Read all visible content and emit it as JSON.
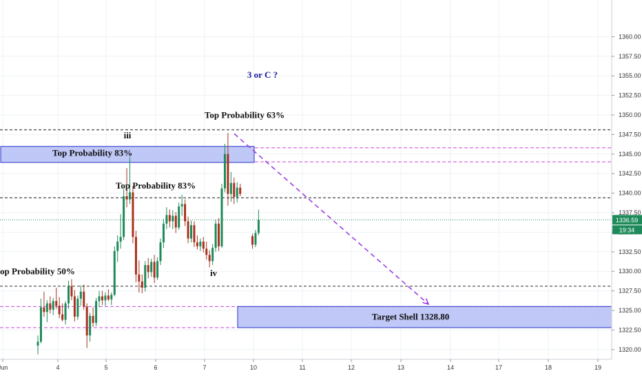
{
  "chart_data": {
    "type": "candlestick",
    "colors": {
      "up": "#1e8a5a",
      "down": "#a8321e",
      "grid": "#eef1f6",
      "black_dashed": "#555555",
      "magenta_dashed": "#c846d8",
      "zone_fill": "#b4bef5",
      "zone_stroke": "#2a32c8",
      "arrow": "#9b3ee0",
      "question_text": "#1a1aa0",
      "price_tag": "#1e8a5a"
    },
    "y_axis": {
      "ticks": [
        "1320.00",
        "1322.50",
        "1325.00",
        "1327.50",
        "1330.00",
        "1332.50",
        "1335.00",
        "1337.50",
        "1340.00",
        "1342.50",
        "1345.00",
        "1347.50",
        "1350.00",
        "1352.50",
        "1355.00",
        "1357.50",
        "1360.00"
      ],
      "range": [
        1319,
        1362
      ]
    },
    "x_axis": {
      "ticks": [
        "Jun",
        "4",
        "5",
        "6",
        "7",
        "10",
        "11",
        "12",
        "13",
        "14",
        "17",
        "18",
        "19"
      ]
    },
    "current_price": "1336.59",
    "countdown": "19:34",
    "levels": {
      "black_dashed": [
        1348.1,
        1339.4,
        1328.1
      ],
      "magenta_dashed": [
        1345.8,
        1344.0,
        1325.5,
        1322.8
      ],
      "current_dotted": 1336.59
    },
    "zones": [
      {
        "label": "Top Probability 83%",
        "from_x": "Jun",
        "to_x": "10",
        "y_low": 1344.1,
        "y_high": 1345.8
      },
      {
        "label": "Target Shell 1328.80",
        "from_x": "7",
        "to_x": "19",
        "y_low": 1322.8,
        "y_high": 1325.5
      }
    ],
    "annotations": [
      {
        "id": "ann-top63",
        "text": "Top Probability 63%",
        "x": "7",
        "y": 1349.6
      },
      {
        "id": "ann-iii",
        "text": "iii",
        "x": "5",
        "y": 1347.0
      },
      {
        "id": "ann-top83-mid",
        "text": "Top Probability 83%",
        "x": "6",
        "y": 1340.6
      },
      {
        "id": "ann-top50",
        "text": "op Probability 50%",
        "x": "Jun",
        "y": 1329.6
      },
      {
        "id": "ann-iv",
        "text": "iv",
        "x": "7",
        "y": 1329.4
      }
    ],
    "question_text": "3 or C ?",
    "projection": {
      "from_x": "7",
      "from_y": 1347.6,
      "to_x": "13",
      "to_y": 1325.8
    },
    "candles": [
      {
        "o": 1320.5,
        "h": 1321.8,
        "l": 1319.4,
        "c": 1321.0
      },
      {
        "o": 1321.0,
        "h": 1326.5,
        "l": 1320.8,
        "c": 1325.4
      },
      {
        "o": 1325.4,
        "h": 1327.4,
        "l": 1324.2,
        "c": 1324.8
      },
      {
        "o": 1324.8,
        "h": 1326.3,
        "l": 1323.5,
        "c": 1325.9
      },
      {
        "o": 1325.9,
        "h": 1326.8,
        "l": 1324.6,
        "c": 1325.1
      },
      {
        "o": 1325.1,
        "h": 1326.6,
        "l": 1324.4,
        "c": 1326.2
      },
      {
        "o": 1326.2,
        "h": 1327.9,
        "l": 1325.2,
        "c": 1325.6
      },
      {
        "o": 1325.6,
        "h": 1326.7,
        "l": 1324.0,
        "c": 1324.5
      },
      {
        "o": 1324.5,
        "h": 1325.9,
        "l": 1323.6,
        "c": 1323.8
      },
      {
        "o": 1323.8,
        "h": 1326.2,
        "l": 1323.2,
        "c": 1325.9
      },
      {
        "o": 1325.9,
        "h": 1328.8,
        "l": 1325.2,
        "c": 1328.1
      },
      {
        "o": 1328.1,
        "h": 1329.0,
        "l": 1326.3,
        "c": 1326.8
      },
      {
        "o": 1326.8,
        "h": 1327.6,
        "l": 1323.6,
        "c": 1324.2
      },
      {
        "o": 1324.2,
        "h": 1326.9,
        "l": 1323.8,
        "c": 1326.5
      },
      {
        "o": 1326.5,
        "h": 1328.2,
        "l": 1325.6,
        "c": 1327.4
      },
      {
        "o": 1327.4,
        "h": 1328.3,
        "l": 1325.1,
        "c": 1325.5
      },
      {
        "o": 1325.5,
        "h": 1325.9,
        "l": 1320.2,
        "c": 1321.8
      },
      {
        "o": 1321.8,
        "h": 1324.7,
        "l": 1321.0,
        "c": 1324.3
      },
      {
        "o": 1324.3,
        "h": 1325.4,
        "l": 1322.9,
        "c": 1323.4
      },
      {
        "o": 1323.4,
        "h": 1326.6,
        "l": 1323.0,
        "c": 1326.2
      },
      {
        "o": 1326.2,
        "h": 1327.5,
        "l": 1325.4,
        "c": 1326.8
      },
      {
        "o": 1326.8,
        "h": 1327.5,
        "l": 1325.7,
        "c": 1326.3
      },
      {
        "o": 1326.3,
        "h": 1327.3,
        "l": 1325.6,
        "c": 1326.9
      },
      {
        "o": 1326.9,
        "h": 1327.7,
        "l": 1326.2,
        "c": 1326.4
      },
      {
        "o": 1326.4,
        "h": 1327.3,
        "l": 1325.7,
        "c": 1327.0
      },
      {
        "o": 1327.0,
        "h": 1333.2,
        "l": 1326.8,
        "c": 1332.6
      },
      {
        "o": 1332.6,
        "h": 1334.6,
        "l": 1331.2,
        "c": 1333.8
      },
      {
        "o": 1333.8,
        "h": 1337.3,
        "l": 1332.9,
        "c": 1334.4
      },
      {
        "o": 1334.4,
        "h": 1340.5,
        "l": 1334.0,
        "c": 1339.6
      },
      {
        "o": 1339.6,
        "h": 1343.2,
        "l": 1338.2,
        "c": 1339.2
      },
      {
        "o": 1339.2,
        "h": 1344.6,
        "l": 1338.6,
        "c": 1340.1
      },
      {
        "o": 1340.1,
        "h": 1340.9,
        "l": 1333.6,
        "c": 1334.4
      },
      {
        "o": 1334.4,
        "h": 1335.2,
        "l": 1328.6,
        "c": 1329.6
      },
      {
        "o": 1329.6,
        "h": 1331.4,
        "l": 1327.3,
        "c": 1328.7
      },
      {
        "o": 1328.7,
        "h": 1329.6,
        "l": 1327.2,
        "c": 1327.9
      },
      {
        "o": 1327.9,
        "h": 1331.3,
        "l": 1327.4,
        "c": 1330.8
      },
      {
        "o": 1330.8,
        "h": 1331.7,
        "l": 1329.1,
        "c": 1329.9
      },
      {
        "o": 1329.9,
        "h": 1331.6,
        "l": 1329.3,
        "c": 1331.2
      },
      {
        "o": 1331.2,
        "h": 1332.1,
        "l": 1328.5,
        "c": 1329.2
      },
      {
        "o": 1329.2,
        "h": 1331.8,
        "l": 1328.9,
        "c": 1331.3
      },
      {
        "o": 1331.3,
        "h": 1334.2,
        "l": 1330.8,
        "c": 1333.7
      },
      {
        "o": 1333.7,
        "h": 1336.7,
        "l": 1333.0,
        "c": 1336.1
      },
      {
        "o": 1336.1,
        "h": 1338.2,
        "l": 1335.4,
        "c": 1337.2
      },
      {
        "o": 1337.2,
        "h": 1337.9,
        "l": 1335.6,
        "c": 1336.4
      },
      {
        "o": 1336.4,
        "h": 1337.8,
        "l": 1335.4,
        "c": 1337.1
      },
      {
        "o": 1337.1,
        "h": 1337.6,
        "l": 1334.9,
        "c": 1335.6
      },
      {
        "o": 1335.6,
        "h": 1338.8,
        "l": 1335.3,
        "c": 1338.3
      },
      {
        "o": 1338.3,
        "h": 1339.8,
        "l": 1337.1,
        "c": 1338.6
      },
      {
        "o": 1338.6,
        "h": 1339.2,
        "l": 1335.8,
        "c": 1336.4
      },
      {
        "o": 1336.4,
        "h": 1337.0,
        "l": 1333.6,
        "c": 1334.2
      },
      {
        "o": 1334.2,
        "h": 1336.5,
        "l": 1333.7,
        "c": 1335.9
      },
      {
        "o": 1335.9,
        "h": 1336.4,
        "l": 1333.1,
        "c": 1333.7
      },
      {
        "o": 1333.7,
        "h": 1334.6,
        "l": 1332.8,
        "c": 1333.2
      },
      {
        "o": 1333.2,
        "h": 1334.2,
        "l": 1332.6,
        "c": 1333.8
      },
      {
        "o": 1333.8,
        "h": 1334.4,
        "l": 1332.4,
        "c": 1332.9
      },
      {
        "o": 1332.9,
        "h": 1333.8,
        "l": 1331.5,
        "c": 1332.1
      },
      {
        "o": 1332.1,
        "h": 1332.7,
        "l": 1330.5,
        "c": 1331.3
      },
      {
        "o": 1331.3,
        "h": 1333.5,
        "l": 1330.8,
        "c": 1333.0
      },
      {
        "o": 1333.0,
        "h": 1336.6,
        "l": 1332.5,
        "c": 1336.1
      },
      {
        "o": 1336.1,
        "h": 1336.8,
        "l": 1332.6,
        "c": 1333.2
      },
      {
        "o": 1333.2,
        "h": 1341.2,
        "l": 1333.0,
        "c": 1340.6
      },
      {
        "o": 1340.6,
        "h": 1346.3,
        "l": 1340.1,
        "c": 1345.0
      },
      {
        "o": 1345.0,
        "h": 1347.7,
        "l": 1338.4,
        "c": 1339.9
      },
      {
        "o": 1339.9,
        "h": 1342.7,
        "l": 1338.9,
        "c": 1341.3
      },
      {
        "o": 1341.3,
        "h": 1342.0,
        "l": 1338.6,
        "c": 1339.5
      },
      {
        "o": 1339.5,
        "h": 1341.4,
        "l": 1338.8,
        "c": 1340.7
      },
      {
        "o": 1340.7,
        "h": 1341.2,
        "l": 1339.6,
        "c": 1339.9
      },
      {
        "o": null,
        "h": null,
        "l": null,
        "c": null
      },
      {
        "o": null,
        "h": null,
        "l": null,
        "c": null
      },
      {
        "o": null,
        "h": null,
        "l": null,
        "c": null
      },
      {
        "o": 1334.5,
        "h": 1334.8,
        "l": 1332.9,
        "c": 1333.4
      },
      {
        "o": 1333.4,
        "h": 1335.3,
        "l": 1333.1,
        "c": 1334.9
      },
      {
        "o": 1334.9,
        "h": 1337.9,
        "l": 1334.6,
        "c": 1336.6
      }
    ]
  }
}
